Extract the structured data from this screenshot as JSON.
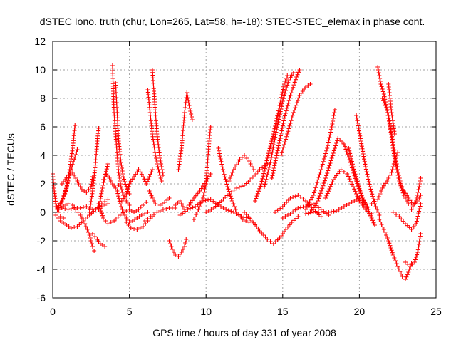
{
  "chart_data": {
    "type": "scatter",
    "title": "dSTEC Iono. truth (chur, Lon=265, Lat=58, h=-18): STEC-STEC_elemax in phase cont.",
    "xlabel": "GPS time / hours of day 331 of year 2008",
    "ylabel": "dSTEC  / TECUs",
    "xlim": [
      0,
      25
    ],
    "ylim": [
      -6,
      12
    ],
    "x_ticks": [
      0,
      5,
      10,
      15,
      20,
      25
    ],
    "y_ticks": [
      -6,
      -4,
      -2,
      0,
      2,
      4,
      6,
      8,
      10,
      12
    ],
    "grid": true,
    "marker": "+",
    "color": "#ff0000",
    "series_traces": [
      [
        [
          0.0,
          2.7
        ],
        [
          0.1,
          1.5
        ],
        [
          0.2,
          0.6
        ],
        [
          0.35,
          0.0
        ],
        [
          0.5,
          -0.3
        ],
        [
          0.7,
          -0.4
        ]
      ],
      [
        [
          0.2,
          -0.2
        ],
        [
          0.5,
          -0.6
        ],
        [
          0.9,
          -0.9
        ],
        [
          1.2,
          -1.1
        ],
        [
          1.6,
          -1.0
        ],
        [
          2.0,
          -0.6
        ],
        [
          2.4,
          -0.2
        ],
        [
          2.8,
          0.2
        ],
        [
          3.2,
          0.6
        ],
        [
          3.6,
          0.9
        ]
      ],
      [
        [
          0.3,
          0.3
        ],
        [
          0.6,
          0.8
        ],
        [
          0.9,
          1.7
        ],
        [
          1.1,
          3.0
        ],
        [
          1.3,
          4.5
        ],
        [
          1.45,
          6.1
        ]
      ],
      [
        [
          0.5,
          0.5
        ],
        [
          0.8,
          1.3
        ],
        [
          1.0,
          2.2
        ],
        [
          1.2,
          3.0
        ],
        [
          1.4,
          3.7
        ],
        [
          1.6,
          4.4
        ]
      ],
      [
        [
          0.4,
          0.2
        ],
        [
          0.7,
          0.4
        ],
        [
          1.0,
          0.6
        ],
        [
          1.3,
          0.5
        ],
        [
          1.5,
          0.2
        ],
        [
          1.8,
          -0.2
        ],
        [
          2.1,
          -0.8
        ],
        [
          2.4,
          -1.6
        ],
        [
          2.6,
          -2.4
        ],
        [
          2.7,
          -2.7
        ]
      ],
      [
        [
          0.2,
          0.4
        ],
        [
          0.6,
          0.3
        ],
        [
          1.0,
          0.2
        ],
        [
          1.4,
          0.3
        ],
        [
          1.8,
          0.3
        ],
        [
          2.2,
          0.4
        ],
        [
          2.6,
          0.2
        ],
        [
          3.0,
          0.3
        ],
        [
          3.4,
          0.5
        ],
        [
          3.6,
          0.6
        ]
      ],
      [
        [
          0.6,
          2.0
        ],
        [
          1.0,
          2.6
        ],
        [
          1.3,
          2.8
        ],
        [
          1.6,
          2.2
        ],
        [
          1.9,
          1.6
        ],
        [
          2.2,
          1.4
        ],
        [
          2.5,
          1.8
        ],
        [
          2.6,
          2.5
        ]
      ],
      [
        [
          2.4,
          0.0
        ],
        [
          2.6,
          1.5
        ],
        [
          2.8,
          3.5
        ],
        [
          2.9,
          5.0
        ],
        [
          3.0,
          5.9
        ]
      ],
      [
        [
          2.6,
          -1.5
        ],
        [
          2.9,
          -1.9
        ],
        [
          3.1,
          -2.2
        ],
        [
          3.4,
          -2.4
        ]
      ],
      [
        [
          3.0,
          0.2
        ],
        [
          3.2,
          1.5
        ],
        [
          3.4,
          2.5
        ],
        [
          3.6,
          3.4
        ]
      ],
      [
        [
          3.3,
          2.3
        ],
        [
          3.5,
          2.7
        ],
        [
          3.7,
          2.4
        ],
        [
          3.9,
          2.0
        ],
        [
          4.1,
          1.7
        ],
        [
          4.3,
          1.9
        ]
      ],
      [
        [
          3.0,
          0.6
        ],
        [
          3.3,
          -0.4
        ],
        [
          3.6,
          -0.8
        ],
        [
          4.0,
          -0.6
        ],
        [
          4.4,
          -0.2
        ],
        [
          4.8,
          0.1
        ]
      ],
      [
        [
          3.9,
          10.3
        ],
        [
          3.95,
          8.5
        ],
        [
          4.0,
          7.0
        ],
        [
          4.1,
          5.5
        ],
        [
          4.2,
          4.0
        ],
        [
          4.3,
          2.8
        ],
        [
          4.45,
          1.8
        ],
        [
          4.6,
          1.2
        ],
        [
          4.8,
          0.8
        ],
        [
          5.0,
          0.5
        ]
      ],
      [
        [
          4.1,
          9.1
        ],
        [
          4.2,
          7.0
        ],
        [
          4.3,
          5.0
        ],
        [
          4.45,
          3.5
        ],
        [
          4.6,
          2.5
        ],
        [
          4.8,
          1.8
        ],
        [
          5.0,
          1.3
        ]
      ],
      [
        [
          4.2,
          1.5
        ],
        [
          4.4,
          0.6
        ],
        [
          4.6,
          0.0
        ],
        [
          4.8,
          -0.4
        ],
        [
          5.0,
          -0.7
        ],
        [
          5.2,
          -0.6
        ],
        [
          5.5,
          -0.4
        ],
        [
          5.8,
          -0.2
        ],
        [
          6.2,
          0.0
        ]
      ],
      [
        [
          4.5,
          0.8
        ],
        [
          4.8,
          1.3
        ],
        [
          5.0,
          2.0
        ],
        [
          5.3,
          2.5
        ],
        [
          5.6,
          3.0
        ],
        [
          5.9,
          2.5
        ],
        [
          6.1,
          2.0
        ],
        [
          6.3,
          2.5
        ],
        [
          6.5,
          3.0
        ]
      ],
      [
        [
          4.8,
          -0.7
        ],
        [
          5.1,
          -1.1
        ],
        [
          5.5,
          -1.2
        ],
        [
          5.9,
          -1.0
        ],
        [
          6.2,
          -0.6
        ],
        [
          6.5,
          -0.3
        ]
      ],
      [
        [
          5.0,
          0.2
        ],
        [
          5.3,
          0.0
        ],
        [
          5.6,
          0.2
        ],
        [
          5.9,
          0.5
        ],
        [
          6.1,
          0.7
        ]
      ],
      [
        [
          6.2,
          8.6
        ],
        [
          6.35,
          7.0
        ],
        [
          6.5,
          5.5
        ],
        [
          6.7,
          4.0
        ],
        [
          6.9,
          3.0
        ],
        [
          7.1,
          2.2
        ]
      ],
      [
        [
          6.5,
          10.0
        ],
        [
          6.6,
          8.5
        ],
        [
          6.7,
          7.0
        ],
        [
          6.8,
          5.5
        ],
        [
          7.0,
          3.8
        ],
        [
          7.2,
          2.6
        ]
      ],
      [
        [
          6.3,
          1.5
        ],
        [
          6.5,
          1.0
        ],
        [
          6.7,
          0.6
        ],
        [
          7.0,
          0.5
        ],
        [
          7.3,
          0.7
        ],
        [
          7.6,
          1.0
        ]
      ],
      [
        [
          6.0,
          -0.6
        ],
        [
          6.4,
          -0.3
        ],
        [
          6.8,
          0.0
        ],
        [
          7.2,
          0.2
        ],
        [
          7.6,
          0.3
        ],
        [
          8.0,
          0.3
        ]
      ],
      [
        [
          7.6,
          -2.0
        ],
        [
          7.8,
          -2.6
        ],
        [
          8.0,
          -3.0
        ],
        [
          8.2,
          -3.1
        ],
        [
          8.4,
          -2.8
        ],
        [
          8.6,
          -2.4
        ],
        [
          8.7,
          -1.9
        ]
      ],
      [
        [
          8.2,
          3.0
        ],
        [
          8.4,
          4.5
        ],
        [
          8.6,
          7.0
        ],
        [
          8.75,
          8.4
        ],
        [
          8.9,
          7.5
        ],
        [
          9.1,
          6.5
        ]
      ],
      [
        [
          8.0,
          0.5
        ],
        [
          8.3,
          0.8
        ],
        [
          8.6,
          0.2
        ],
        [
          8.9,
          0.5
        ],
        [
          9.2,
          1.0
        ],
        [
          9.6,
          1.5
        ],
        [
          10.0,
          2.2
        ],
        [
          10.3,
          2.7
        ]
      ],
      [
        [
          9.2,
          -0.5
        ],
        [
          9.5,
          0.2
        ],
        [
          9.8,
          1.0
        ],
        [
          10.0,
          2.0
        ],
        [
          10.1,
          3.5
        ],
        [
          10.2,
          5.0
        ],
        [
          10.3,
          6.0
        ]
      ],
      [
        [
          8.3,
          -0.2
        ],
        [
          8.8,
          0.2
        ],
        [
          9.3,
          0.4
        ],
        [
          9.8,
          0.8
        ],
        [
          10.3,
          0.9
        ],
        [
          10.8,
          0.5
        ],
        [
          11.3,
          0.2
        ],
        [
          11.8,
          0.0
        ],
        [
          12.3,
          -0.3
        ],
        [
          12.8,
          -0.4
        ]
      ],
      [
        [
          10.0,
          0.0
        ],
        [
          10.5,
          0.3
        ],
        [
          11.0,
          0.8
        ],
        [
          11.5,
          1.3
        ],
        [
          12.0,
          1.7
        ],
        [
          12.5,
          1.9
        ],
        [
          13.0,
          2.4
        ],
        [
          13.5,
          3.0
        ],
        [
          14.0,
          3.4
        ]
      ],
      [
        [
          10.8,
          4.5
        ],
        [
          11.1,
          3.0
        ],
        [
          11.4,
          1.8
        ],
        [
          11.7,
          0.8
        ],
        [
          12.0,
          0.0
        ],
        [
          12.4,
          -0.5
        ],
        [
          12.8,
          -0.7
        ]
      ],
      [
        [
          11.5,
          2.2
        ],
        [
          11.8,
          3.0
        ],
        [
          12.2,
          3.7
        ],
        [
          12.5,
          4.0
        ],
        [
          12.8,
          3.6
        ],
        [
          13.1,
          3.0
        ]
      ],
      [
        [
          12.5,
          0.0
        ],
        [
          13.0,
          -0.6
        ],
        [
          13.5,
          -1.3
        ],
        [
          14.0,
          -1.9
        ],
        [
          14.4,
          -2.2
        ],
        [
          14.8,
          -1.8
        ],
        [
          15.2,
          -1.2
        ],
        [
          15.6,
          -0.7
        ],
        [
          16.0,
          -0.3
        ]
      ],
      [
        [
          13.2,
          0.8
        ],
        [
          13.6,
          2.0
        ],
        [
          14.0,
          3.8
        ],
        [
          14.4,
          5.5
        ],
        [
          14.8,
          7.5
        ],
        [
          15.1,
          9.0
        ],
        [
          15.3,
          9.6
        ]
      ],
      [
        [
          13.8,
          1.8
        ],
        [
          14.2,
          3.5
        ],
        [
          14.6,
          5.8
        ],
        [
          15.0,
          7.8
        ],
        [
          15.4,
          9.3
        ],
        [
          15.7,
          9.8
        ]
      ],
      [
        [
          14.3,
          2.4
        ],
        [
          14.7,
          4.5
        ],
        [
          15.1,
          6.6
        ],
        [
          15.5,
          8.2
        ],
        [
          15.9,
          9.5
        ],
        [
          16.1,
          10.0
        ]
      ],
      [
        [
          14.9,
          4.0
        ],
        [
          15.3,
          5.5
        ],
        [
          15.7,
          7.0
        ],
        [
          16.1,
          8.2
        ],
        [
          16.5,
          8.8
        ],
        [
          16.8,
          9.0
        ]
      ],
      [
        [
          14.5,
          0.0
        ],
        [
          15.0,
          0.4
        ],
        [
          15.5,
          1.0
        ],
        [
          16.0,
          1.2
        ],
        [
          16.5,
          0.8
        ],
        [
          17.0,
          0.2
        ],
        [
          17.5,
          -0.3
        ]
      ],
      [
        [
          15.0,
          -0.4
        ],
        [
          15.5,
          -0.1
        ],
        [
          16.0,
          0.3
        ],
        [
          16.5,
          0.4
        ],
        [
          17.0,
          0.6
        ],
        [
          17.5,
          0.2
        ],
        [
          18.0,
          -0.2
        ]
      ],
      [
        [
          16.8,
          0.0
        ],
        [
          17.3,
          0.8
        ],
        [
          17.8,
          2.4
        ],
        [
          18.2,
          3.8
        ],
        [
          18.6,
          5.2
        ],
        [
          19.0,
          4.8
        ],
        [
          19.4,
          3.5
        ],
        [
          19.8,
          2.2
        ],
        [
          20.2,
          1.0
        ],
        [
          20.6,
          0.2
        ]
      ],
      [
        [
          16.5,
          0.2
        ],
        [
          17.0,
          1.2
        ],
        [
          17.5,
          3.0
        ],
        [
          17.9,
          4.5
        ],
        [
          18.2,
          6.0
        ],
        [
          18.4,
          7.2
        ]
      ],
      [
        [
          17.8,
          1.0
        ],
        [
          18.3,
          2.3
        ],
        [
          18.8,
          3.0
        ],
        [
          19.2,
          2.7
        ],
        [
          19.6,
          1.8
        ],
        [
          20.0,
          0.8
        ],
        [
          20.4,
          0.2
        ],
        [
          20.8,
          -0.1
        ]
      ],
      [
        [
          16.5,
          -0.1
        ],
        [
          17.0,
          0.0
        ],
        [
          17.5,
          0.0
        ],
        [
          18.0,
          0.0
        ],
        [
          18.5,
          0.1
        ],
        [
          19.0,
          0.4
        ],
        [
          19.5,
          0.7
        ],
        [
          20.0,
          1.0
        ],
        [
          20.4,
          0.4
        ],
        [
          20.8,
          -0.4
        ],
        [
          21.0,
          -0.9
        ]
      ],
      [
        [
          19.8,
          6.8
        ],
        [
          20.1,
          5.0
        ],
        [
          20.4,
          3.2
        ],
        [
          20.7,
          1.8
        ],
        [
          21.0,
          0.6
        ],
        [
          21.3,
          -0.2
        ]
      ],
      [
        [
          19.3,
          4.5
        ],
        [
          19.6,
          3.2
        ],
        [
          19.9,
          2.0
        ],
        [
          20.2,
          1.0
        ],
        [
          20.5,
          0.4
        ]
      ],
      [
        [
          21.2,
          10.2
        ],
        [
          21.4,
          9.0
        ],
        [
          21.6,
          8.3
        ],
        [
          21.8,
          7.2
        ],
        [
          22.0,
          6.0
        ],
        [
          22.2,
          4.5
        ],
        [
          22.4,
          3.2
        ],
        [
          22.6,
          2.2
        ],
        [
          22.9,
          1.2
        ],
        [
          23.2,
          0.6
        ]
      ],
      [
        [
          21.5,
          8.0
        ],
        [
          21.7,
          7.5
        ],
        [
          21.9,
          6.8
        ],
        [
          22.1,
          5.5
        ],
        [
          22.3,
          4.2
        ],
        [
          22.5,
          3.0
        ],
        [
          22.7,
          2.0
        ],
        [
          23.0,
          1.2
        ]
      ],
      [
        [
          21.9,
          9.0
        ],
        [
          22.0,
          8.0
        ],
        [
          22.1,
          7.0
        ],
        [
          22.3,
          5.5
        ]
      ],
      [
        [
          20.8,
          0.6
        ],
        [
          21.2,
          0.9
        ],
        [
          21.5,
          1.7
        ],
        [
          21.8,
          2.2
        ],
        [
          22.1,
          2.8
        ],
        [
          22.3,
          3.6
        ],
        [
          22.5,
          4.2
        ]
      ],
      [
        [
          21.3,
          -0.5
        ],
        [
          21.6,
          -1.2
        ],
        [
          21.9,
          -2.0
        ],
        [
          22.2,
          -3.0
        ],
        [
          22.5,
          -3.8
        ],
        [
          22.8,
          -4.5
        ],
        [
          23.0,
          -4.7
        ],
        [
          23.2,
          -4.2
        ],
        [
          23.4,
          -3.6
        ]
      ],
      [
        [
          23.0,
          -3.5
        ],
        [
          23.3,
          -3.8
        ],
        [
          23.6,
          -3.5
        ],
        [
          23.8,
          -2.8
        ],
        [
          24.0,
          -1.5
        ]
      ],
      [
        [
          22.9,
          1.5
        ],
        [
          23.2,
          1.0
        ],
        [
          23.5,
          0.5
        ],
        [
          23.8,
          0.8
        ],
        [
          24.0,
          1.2
        ]
      ],
      [
        [
          23.4,
          0.2
        ],
        [
          23.7,
          0.8
        ],
        [
          23.9,
          1.8
        ],
        [
          24.0,
          2.4
        ]
      ],
      [
        [
          22.2,
          0.0
        ],
        [
          22.6,
          -0.3
        ],
        [
          23.0,
          -0.8
        ],
        [
          23.4,
          -1.2
        ],
        [
          23.7,
          -0.8
        ],
        [
          24.0,
          0.6
        ]
      ]
    ]
  }
}
